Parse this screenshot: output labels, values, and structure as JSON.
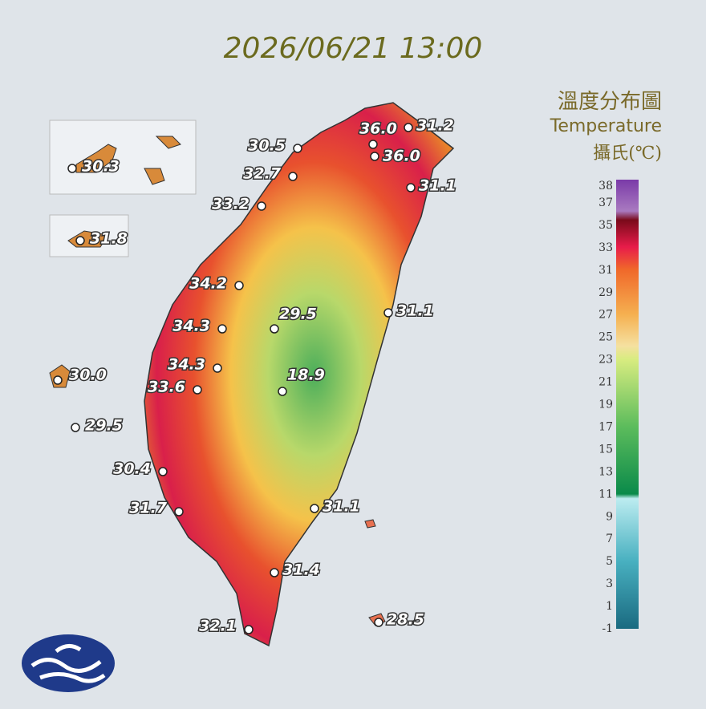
{
  "title": "2026/06/21 13:00",
  "legend": {
    "title_zh": "溫度分布圖",
    "title_en": "Temperature",
    "unit": "攝氏(℃)",
    "ticks": [
      "38",
      "37",
      "35",
      "33",
      "31",
      "29",
      "27",
      "25",
      "23",
      "21",
      "19",
      "17",
      "15",
      "13",
      "11",
      "9",
      "7",
      "5",
      "3",
      "1",
      "-1"
    ]
  },
  "stations": [
    {
      "value": "36.0"
    },
    {
      "value": "36.0"
    },
    {
      "value": "31.2"
    },
    {
      "value": "30.5"
    },
    {
      "value": "32.7"
    },
    {
      "value": "31.1"
    },
    {
      "value": "33.2"
    },
    {
      "value": "34.2"
    },
    {
      "value": "29.5"
    },
    {
      "value": "31.1"
    },
    {
      "value": "34.3"
    },
    {
      "value": "34.3"
    },
    {
      "value": "18.9"
    },
    {
      "value": "33.6"
    },
    {
      "value": "30.0"
    },
    {
      "value": "29.5"
    },
    {
      "value": "30.4"
    },
    {
      "value": "31.7"
    },
    {
      "value": "31.1"
    },
    {
      "value": "31.4"
    },
    {
      "value": "32.1"
    },
    {
      "value": "28.5"
    },
    {
      "value": "30.3"
    },
    {
      "value": "31.8"
    }
  ]
}
